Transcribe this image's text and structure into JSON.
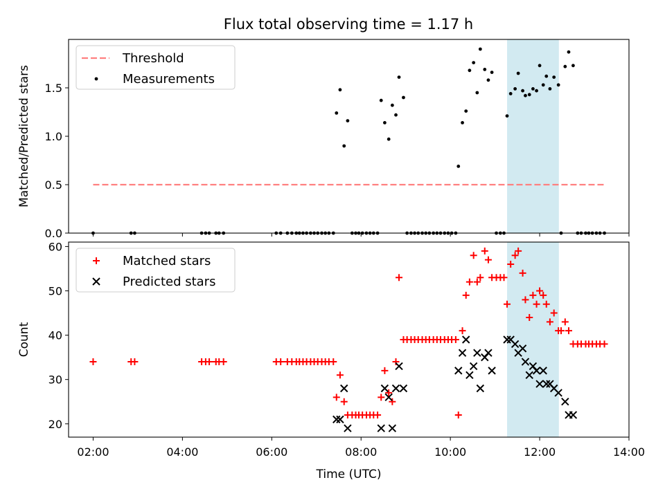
{
  "title": "Flux total observing time = 1.17 h",
  "colors": {
    "threshold": "#ff7f7f",
    "measurement": "#000000",
    "matched": "#ff0000",
    "predicted": "#000000",
    "shade": "#add8e6"
  },
  "chart_data": [
    {
      "type": "scatter",
      "panel": "top",
      "ylabel": "Matched/Predicted stars",
      "xlim": [
        1.45,
        14.0
      ],
      "ylim": [
        0,
        2.0
      ],
      "yticks": [
        0.0,
        0.5,
        1.0,
        1.5
      ],
      "ytick_labels": [
        "0.0",
        "0.5",
        "1.0",
        "1.5"
      ],
      "legend": [
        "Threshold",
        "Measurements"
      ],
      "legend_location": "upper-left",
      "shaded_span": [
        11.27,
        12.43
      ],
      "threshold": {
        "name": "Threshold",
        "x": [
          2.0,
          13.45
        ],
        "y": [
          0.5,
          0.5
        ],
        "style": "dashed"
      },
      "series": [
        {
          "name": "Measurements",
          "marker": "dot",
          "points": [
            [
              2.0,
              0
            ],
            [
              2.85,
              0
            ],
            [
              2.93,
              0
            ],
            [
              4.43,
              0
            ],
            [
              4.52,
              0
            ],
            [
              4.6,
              0
            ],
            [
              4.75,
              0
            ],
            [
              4.82,
              0
            ],
            [
              4.92,
              0
            ],
            [
              6.1,
              0
            ],
            [
              6.2,
              0
            ],
            [
              6.35,
              0
            ],
            [
              6.45,
              0
            ],
            [
              6.55,
              0
            ],
            [
              6.62,
              0
            ],
            [
              6.7,
              0
            ],
            [
              6.78,
              0
            ],
            [
              6.87,
              0
            ],
            [
              6.95,
              0
            ],
            [
              7.03,
              0
            ],
            [
              7.12,
              0
            ],
            [
              7.2,
              0
            ],
            [
              7.28,
              0
            ],
            [
              7.38,
              0
            ],
            [
              7.45,
              1.24
            ],
            [
              7.53,
              1.48
            ],
            [
              7.62,
              0.9
            ],
            [
              7.7,
              1.16
            ],
            [
              7.8,
              0
            ],
            [
              7.88,
              0
            ],
            [
              7.95,
              0
            ],
            [
              8.03,
              0
            ],
            [
              8.12,
              0
            ],
            [
              8.2,
              0
            ],
            [
              8.28,
              0
            ],
            [
              8.37,
              0
            ],
            [
              8.45,
              1.37
            ],
            [
              8.53,
              1.14
            ],
            [
              8.62,
              0.97
            ],
            [
              8.7,
              1.32
            ],
            [
              8.78,
              1.22
            ],
            [
              8.85,
              1.61
            ],
            [
              8.95,
              1.4
            ],
            [
              9.03,
              0
            ],
            [
              9.12,
              0
            ],
            [
              9.2,
              0
            ],
            [
              9.28,
              0
            ],
            [
              9.37,
              0
            ],
            [
              9.45,
              0
            ],
            [
              9.53,
              0
            ],
            [
              9.62,
              0
            ],
            [
              9.7,
              0
            ],
            [
              9.78,
              0
            ],
            [
              9.87,
              0
            ],
            [
              9.95,
              0
            ],
            [
              10.03,
              0
            ],
            [
              10.12,
              0
            ],
            [
              10.18,
              0.69
            ],
            [
              10.27,
              1.14
            ],
            [
              10.35,
              1.26
            ],
            [
              10.43,
              1.68
            ],
            [
              10.52,
              1.76
            ],
            [
              10.6,
              1.45
            ],
            [
              10.67,
              1.9
            ],
            [
              10.77,
              1.69
            ],
            [
              10.85,
              1.58
            ],
            [
              10.93,
              1.66
            ],
            [
              11.03,
              0
            ],
            [
              11.12,
              0
            ],
            [
              11.2,
              0
            ],
            [
              11.27,
              1.21
            ],
            [
              11.35,
              1.44
            ],
            [
              11.45,
              1.49
            ],
            [
              11.52,
              1.65
            ],
            [
              11.62,
              1.47
            ],
            [
              11.68,
              1.42
            ],
            [
              11.77,
              1.43
            ],
            [
              11.85,
              1.49
            ],
            [
              11.93,
              1.47
            ],
            [
              12.0,
              1.73
            ],
            [
              12.08,
              1.53
            ],
            [
              12.15,
              1.62
            ],
            [
              12.23,
              1.49
            ],
            [
              12.32,
              1.61
            ],
            [
              12.42,
              1.53
            ],
            [
              12.48,
              0
            ],
            [
              12.57,
              1.72
            ],
            [
              12.65,
              1.87
            ],
            [
              12.75,
              1.73
            ],
            [
              12.85,
              0
            ],
            [
              12.93,
              0
            ],
            [
              13.03,
              0
            ],
            [
              13.1,
              0
            ],
            [
              13.18,
              0
            ],
            [
              13.27,
              0
            ],
            [
              13.35,
              0
            ],
            [
              13.45,
              0
            ]
          ]
        }
      ]
    },
    {
      "type": "scatter",
      "panel": "bottom",
      "xlabel": "Time (UTC)",
      "ylabel": "Count",
      "xlim": [
        1.45,
        14.0
      ],
      "ylim": [
        17,
        61
      ],
      "xticks": [
        2,
        4,
        6,
        8,
        10,
        12,
        14
      ],
      "xtick_labels": [
        "02:00",
        "04:00",
        "06:00",
        "08:00",
        "10:00",
        "12:00",
        "14:00"
      ],
      "yticks": [
        20,
        30,
        40,
        50,
        60
      ],
      "ytick_labels": [
        "20",
        "30",
        "40",
        "50",
        "60"
      ],
      "legend": [
        "Matched stars",
        "Predicted stars"
      ],
      "legend_location": "upper-left",
      "shaded_span": [
        11.27,
        12.43
      ],
      "series": [
        {
          "name": "Matched stars",
          "marker": "plus",
          "points": [
            [
              2.0,
              34
            ],
            [
              2.85,
              34
            ],
            [
              2.93,
              34
            ],
            [
              4.43,
              34
            ],
            [
              4.52,
              34
            ],
            [
              4.6,
              34
            ],
            [
              4.75,
              34
            ],
            [
              4.82,
              34
            ],
            [
              4.92,
              34
            ],
            [
              6.1,
              34
            ],
            [
              6.2,
              34
            ],
            [
              6.35,
              34
            ],
            [
              6.45,
              34
            ],
            [
              6.55,
              34
            ],
            [
              6.62,
              34
            ],
            [
              6.7,
              34
            ],
            [
              6.78,
              34
            ],
            [
              6.87,
              34
            ],
            [
              6.95,
              34
            ],
            [
              7.03,
              34
            ],
            [
              7.12,
              34
            ],
            [
              7.2,
              34
            ],
            [
              7.28,
              34
            ],
            [
              7.38,
              34
            ],
            [
              7.45,
              26
            ],
            [
              7.53,
              31
            ],
            [
              7.62,
              25
            ],
            [
              7.7,
              22
            ],
            [
              7.8,
              22
            ],
            [
              7.88,
              22
            ],
            [
              7.95,
              22
            ],
            [
              8.03,
              22
            ],
            [
              8.12,
              22
            ],
            [
              8.2,
              22
            ],
            [
              8.28,
              22
            ],
            [
              8.37,
              22
            ],
            [
              8.45,
              26
            ],
            [
              8.53,
              32
            ],
            [
              8.62,
              27
            ],
            [
              8.7,
              25
            ],
            [
              8.78,
              34
            ],
            [
              8.85,
              53
            ],
            [
              8.95,
              39
            ],
            [
              9.03,
              39
            ],
            [
              9.12,
              39
            ],
            [
              9.2,
              39
            ],
            [
              9.28,
              39
            ],
            [
              9.37,
              39
            ],
            [
              9.45,
              39
            ],
            [
              9.53,
              39
            ],
            [
              9.62,
              39
            ],
            [
              9.7,
              39
            ],
            [
              9.78,
              39
            ],
            [
              9.87,
              39
            ],
            [
              9.95,
              39
            ],
            [
              10.03,
              39
            ],
            [
              10.12,
              39
            ],
            [
              10.18,
              22
            ],
            [
              10.27,
              41
            ],
            [
              10.35,
              49
            ],
            [
              10.43,
              52
            ],
            [
              10.52,
              58
            ],
            [
              10.6,
              52
            ],
            [
              10.67,
              53
            ],
            [
              10.77,
              59
            ],
            [
              10.85,
              57
            ],
            [
              10.93,
              53
            ],
            [
              11.03,
              53
            ],
            [
              11.12,
              53
            ],
            [
              11.2,
              53
            ],
            [
              11.27,
              47
            ],
            [
              11.35,
              56
            ],
            [
              11.45,
              58
            ],
            [
              11.52,
              59
            ],
            [
              11.62,
              54
            ],
            [
              11.68,
              48
            ],
            [
              11.77,
              44
            ],
            [
              11.85,
              49
            ],
            [
              11.93,
              47
            ],
            [
              12.0,
              50
            ],
            [
              12.08,
              49
            ],
            [
              12.15,
              47
            ],
            [
              12.23,
              43
            ],
            [
              12.32,
              45
            ],
            [
              12.42,
              41
            ],
            [
              12.48,
              41
            ],
            [
              12.57,
              43
            ],
            [
              12.65,
              41
            ],
            [
              12.75,
              38
            ],
            [
              12.85,
              38
            ],
            [
              12.93,
              38
            ],
            [
              13.03,
              38
            ],
            [
              13.1,
              38
            ],
            [
              13.18,
              38
            ],
            [
              13.27,
              38
            ],
            [
              13.35,
              38
            ],
            [
              13.45,
              38
            ]
          ]
        },
        {
          "name": "Predicted stars",
          "marker": "x",
          "points": [
            [
              7.45,
              21
            ],
            [
              7.53,
              21
            ],
            [
              7.62,
              28
            ],
            [
              7.7,
              19
            ],
            [
              8.45,
              19
            ],
            [
              8.53,
              28
            ],
            [
              8.62,
              26
            ],
            [
              8.7,
              19
            ],
            [
              8.78,
              28
            ],
            [
              8.85,
              33
            ],
            [
              8.95,
              28
            ],
            [
              10.18,
              32
            ],
            [
              10.27,
              36
            ],
            [
              10.35,
              39
            ],
            [
              10.43,
              31
            ],
            [
              10.52,
              33
            ],
            [
              10.6,
              36
            ],
            [
              10.67,
              28
            ],
            [
              10.77,
              35
            ],
            [
              10.85,
              36
            ],
            [
              10.93,
              32
            ],
            [
              11.27,
              39
            ],
            [
              11.35,
              39
            ],
            [
              11.45,
              38
            ],
            [
              11.52,
              36
            ],
            [
              11.62,
              37
            ],
            [
              11.68,
              34
            ],
            [
              11.77,
              31
            ],
            [
              11.85,
              33
            ],
            [
              11.93,
              32
            ],
            [
              12.0,
              29
            ],
            [
              12.08,
              32
            ],
            [
              12.15,
              29
            ],
            [
              12.23,
              29
            ],
            [
              12.32,
              28
            ],
            [
              12.42,
              27
            ],
            [
              12.57,
              25
            ],
            [
              12.65,
              22
            ],
            [
              12.75,
              22
            ]
          ]
        }
      ]
    }
  ]
}
